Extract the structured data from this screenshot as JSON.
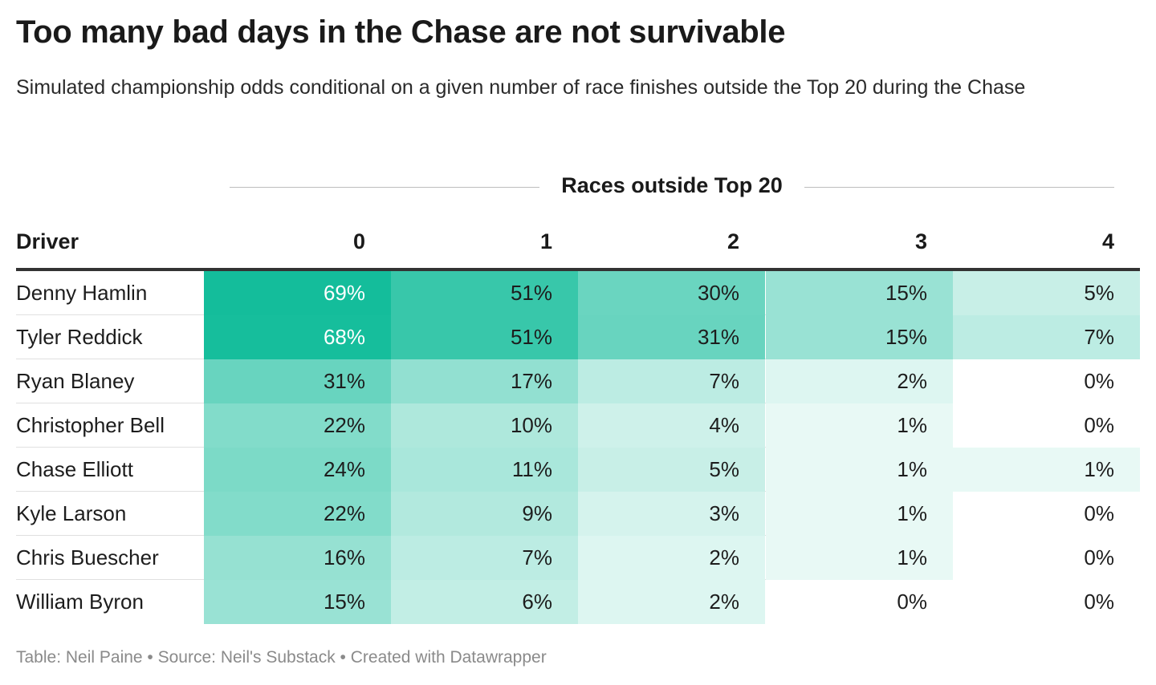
{
  "title": "Too many bad days in the Chase are not survivable",
  "subtitle": "Simulated championship odds conditional on a given number of race finishes outside the Top 20 during the Chase",
  "footer": "Table: Neil Paine • Source: Neil's Substack • Created with Datawrapper",
  "colors": {
    "high": "#14bd9b",
    "low": "#ffffff",
    "text_on_dark": "#ffffff"
  },
  "chart_data": {
    "type": "table",
    "column_group_label": "Races outside Top 20",
    "columns": [
      "Driver",
      "0",
      "1",
      "2",
      "3",
      "4"
    ],
    "unit": "%",
    "rows": [
      {
        "driver": "Denny Hamlin",
        "values": [
          69,
          51,
          30,
          15,
          5
        ]
      },
      {
        "driver": "Tyler Reddick",
        "values": [
          68,
          51,
          31,
          15,
          7
        ]
      },
      {
        "driver": "Ryan Blaney",
        "values": [
          31,
          17,
          7,
          2,
          0
        ]
      },
      {
        "driver": "Christopher Bell",
        "values": [
          22,
          10,
          4,
          1,
          0
        ]
      },
      {
        "driver": "Chase Elliott",
        "values": [
          24,
          11,
          5,
          1,
          1
        ]
      },
      {
        "driver": "Kyle Larson",
        "values": [
          22,
          9,
          3,
          1,
          0
        ]
      },
      {
        "driver": "Chris Buescher",
        "values": [
          16,
          7,
          2,
          1,
          0
        ]
      },
      {
        "driver": "William Byron",
        "values": [
          15,
          6,
          2,
          0,
          0
        ]
      }
    ]
  }
}
